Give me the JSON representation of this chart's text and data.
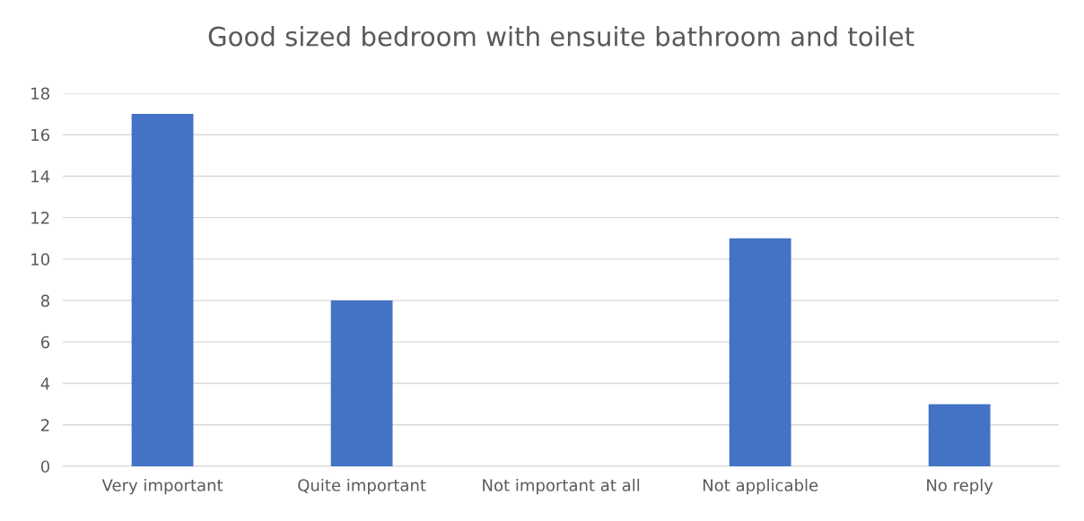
{
  "chart_data": {
    "type": "bar",
    "title": "Good sized bedroom with ensuite bathroom and toilet",
    "categories": [
      "Very important",
      "Quite important",
      "Not important at all",
      "Not applicable",
      "No reply"
    ],
    "values": [
      17,
      8,
      0,
      11,
      3
    ],
    "color": "#4472c4",
    "ylim": [
      0,
      18
    ],
    "yticks": [
      0,
      2,
      4,
      6,
      8,
      10,
      12,
      14,
      16,
      18
    ],
    "grid": "y",
    "legend": false
  }
}
